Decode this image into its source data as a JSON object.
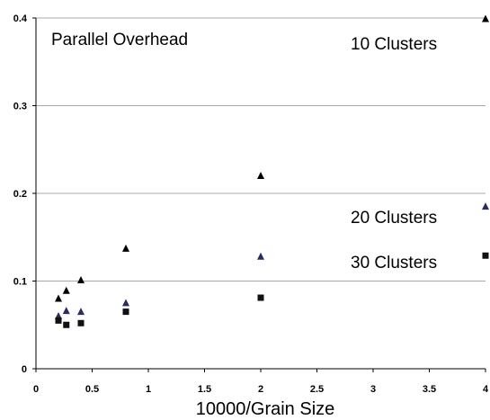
{
  "chart_data": {
    "type": "scatter",
    "title": "Parallel Overhead",
    "xlabel": "10000/Grain Size",
    "ylabel": "",
    "xlim": [
      0,
      4
    ],
    "ylim": [
      0,
      0.4
    ],
    "x_ticks": [
      "0",
      "0.5",
      "1",
      "1.5",
      "2",
      "2.5",
      "3",
      "3.5",
      "4"
    ],
    "y_ticks": [
      "0",
      "0.1",
      "0.2",
      "0.3",
      "0.4"
    ],
    "grid": "horizontal",
    "annotations": [
      "10 Clusters",
      "20 Clusters",
      "30 Clusters"
    ],
    "series": [
      {
        "marker": "triangle",
        "color": "#000000",
        "points": [
          {
            "x": 0.2,
            "y": 0.08
          },
          {
            "x": 0.27,
            "y": 0.089
          },
          {
            "x": 0.4,
            "y": 0.101
          },
          {
            "x": 0.8,
            "y": 0.137
          },
          {
            "x": 2,
            "y": 0.22
          },
          {
            "x": 4,
            "y": 0.399
          }
        ]
      },
      {
        "marker": "triangle",
        "color": "#2b2b63",
        "points": [
          {
            "x": 0.2,
            "y": 0.06
          },
          {
            "x": 0.27,
            "y": 0.066
          },
          {
            "x": 0.4,
            "y": 0.065
          },
          {
            "x": 0.8,
            "y": 0.075
          },
          {
            "x": 2,
            "y": 0.128
          },
          {
            "x": 4,
            "y": 0.185
          }
        ]
      },
      {
        "marker": "square",
        "color": "#111111",
        "points": [
          {
            "x": 0.2,
            "y": 0.055
          },
          {
            "x": 0.27,
            "y": 0.05
          },
          {
            "x": 0.4,
            "y": 0.052
          },
          {
            "x": 0.8,
            "y": 0.065
          },
          {
            "x": 2,
            "y": 0.081
          },
          {
            "x": 4,
            "y": 0.129
          }
        ]
      }
    ]
  }
}
